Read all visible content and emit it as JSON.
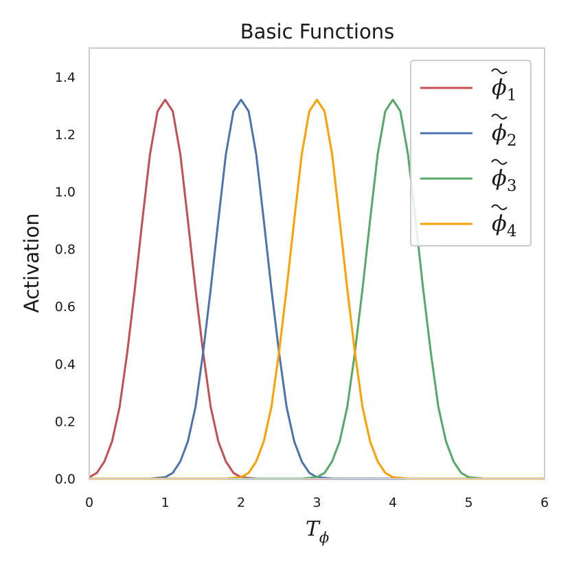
{
  "chart_data": {
    "type": "line",
    "title": "Basic Functions",
    "xlabel": "T",
    "xlabel_subscript": "ϕ",
    "ylabel": "Activation",
    "xlim": [
      0,
      6
    ],
    "ylim": [
      0,
      1.5
    ],
    "xticks": [
      0,
      1,
      2,
      3,
      4,
      5,
      6
    ],
    "xtick_labels": [
      "0",
      "1",
      "2",
      "3",
      "4",
      "5",
      "6"
    ],
    "yticks": [
      0.0,
      0.2,
      0.4,
      0.6,
      0.8,
      1.0,
      1.2,
      1.4
    ],
    "ytick_labels": [
      "0.0",
      "0.2",
      "0.4",
      "0.6",
      "0.8",
      "1.0",
      "1.2",
      "1.4"
    ],
    "grid": false,
    "legend_position": "top-right",
    "series": [
      {
        "name": "ϕ̃1",
        "symbol": "ϕ",
        "subscript": "1",
        "color": "#c44e52",
        "x": [
          0,
          0.1,
          0.2,
          0.3,
          0.4,
          0.5,
          0.6,
          0.7,
          0.8,
          0.9,
          1.0,
          1.1,
          1.2,
          1.3,
          1.4,
          1.5,
          1.6,
          1.7,
          1.8,
          1.9,
          2.0,
          2.2,
          2.5,
          3,
          4,
          5,
          6
        ],
        "y": [
          0.005,
          0.02,
          0.06,
          0.13,
          0.25,
          0.44,
          0.66,
          0.9,
          1.13,
          1.28,
          1.32,
          1.28,
          1.13,
          0.9,
          0.66,
          0.44,
          0.25,
          0.13,
          0.06,
          0.02,
          0.005,
          0,
          0,
          0,
          0,
          0,
          0
        ]
      },
      {
        "name": "ϕ̃2",
        "symbol": "ϕ",
        "subscript": "2",
        "color": "#4c72b0",
        "x": [
          0,
          0.5,
          0.8,
          1.0,
          1.1,
          1.2,
          1.3,
          1.4,
          1.5,
          1.6,
          1.7,
          1.8,
          1.9,
          2.0,
          2.1,
          2.2,
          2.3,
          2.4,
          2.5,
          2.6,
          2.7,
          2.8,
          2.9,
          3.0,
          3.2,
          3.5,
          4,
          5,
          6
        ],
        "y": [
          0,
          0,
          0,
          0.005,
          0.02,
          0.06,
          0.13,
          0.25,
          0.44,
          0.66,
          0.9,
          1.13,
          1.28,
          1.32,
          1.28,
          1.13,
          0.9,
          0.66,
          0.44,
          0.25,
          0.13,
          0.06,
          0.02,
          0.005,
          0,
          0,
          0,
          0,
          0
        ]
      },
      {
        "name": "ϕ̃3",
        "symbol": "ϕ",
        "subscript": "3",
        "color": "#55a868",
        "x": [
          0,
          1,
          2,
          2.5,
          2.8,
          3.0,
          3.1,
          3.2,
          3.3,
          3.4,
          3.5,
          3.6,
          3.7,
          3.8,
          3.9,
          4.0,
          4.1,
          4.2,
          4.3,
          4.4,
          4.5,
          4.6,
          4.7,
          4.8,
          4.9,
          5.0,
          5.2,
          5.5,
          6
        ],
        "y": [
          0,
          0,
          0,
          0,
          0,
          0.005,
          0.02,
          0.06,
          0.13,
          0.25,
          0.44,
          0.66,
          0.9,
          1.13,
          1.28,
          1.32,
          1.28,
          1.13,
          0.9,
          0.66,
          0.44,
          0.25,
          0.13,
          0.06,
          0.02,
          0.005,
          0,
          0,
          0
        ]
      },
      {
        "name": "ϕ̃4",
        "symbol": "ϕ",
        "subscript": "4",
        "color": "#ff9f00",
        "x": [
          0,
          1,
          1.5,
          1.8,
          2.0,
          2.1,
          2.2,
          2.3,
          2.4,
          2.5,
          2.6,
          2.7,
          2.8,
          2.9,
          3.0,
          3.1,
          3.2,
          3.3,
          3.4,
          3.5,
          3.6,
          3.7,
          3.8,
          3.9,
          4.0,
          4.2,
          4.5,
          5,
          6
        ],
        "y": [
          0,
          0,
          0,
          0,
          0.005,
          0.02,
          0.06,
          0.13,
          0.25,
          0.44,
          0.66,
          0.9,
          1.13,
          1.28,
          1.32,
          1.28,
          1.13,
          0.9,
          0.66,
          0.44,
          0.25,
          0.13,
          0.06,
          0.02,
          0.005,
          0,
          0,
          0,
          0
        ]
      }
    ]
  }
}
